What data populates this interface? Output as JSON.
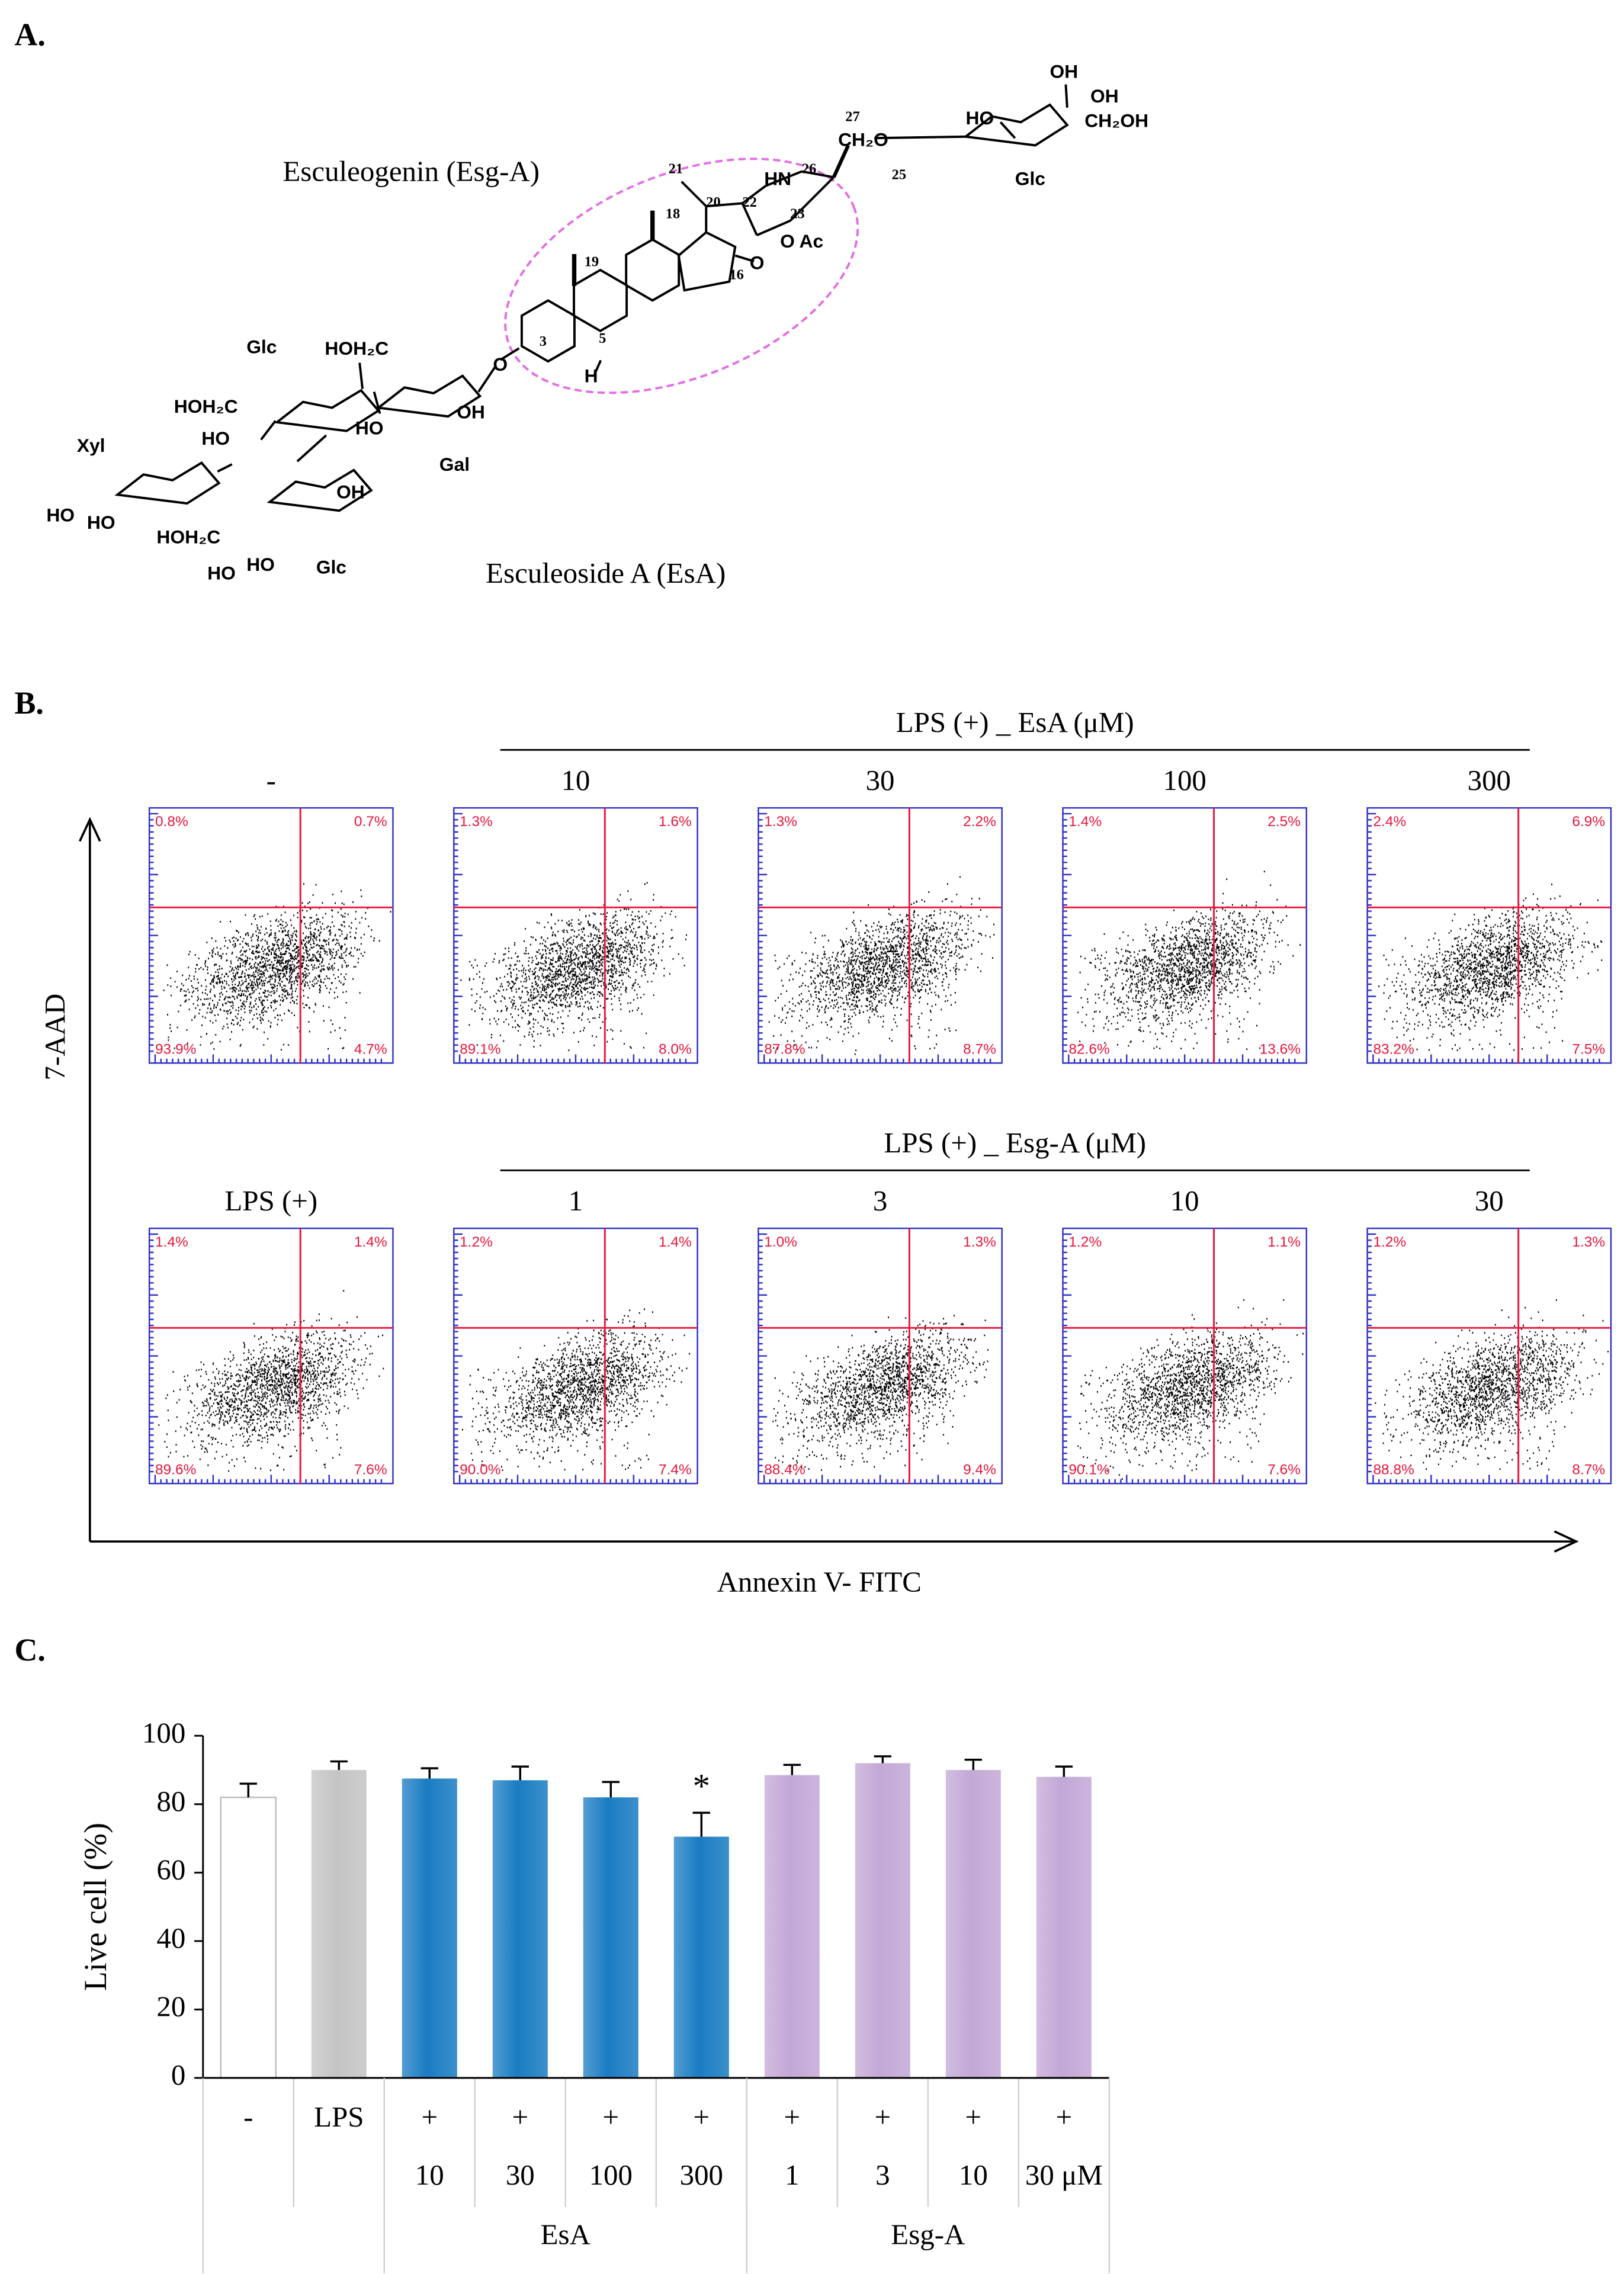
{
  "panel_a": {
    "label": "A.",
    "aglycone": "Esculeogenin (Esg-A)",
    "compound": "Esculeoside A (EsA)",
    "atoms": [
      "OH",
      "HO",
      "OH",
      "CH₂OH",
      "Glc",
      "CH₂O",
      "27",
      "25",
      "26",
      "HN",
      "21",
      "20",
      "22",
      "18",
      "23",
      "O Ac",
      "O",
      "16",
      "19",
      "3",
      "5",
      "H",
      "O",
      "HOH₂C",
      "Glc",
      "HOH₂C",
      "HO",
      "Xyl",
      "OH",
      "HO",
      "Gal",
      "OH",
      "HO",
      "HO",
      "HOH₂C",
      "HO",
      "HO",
      "Glc"
    ]
  },
  "panel_b": {
    "label": "B.",
    "y_axis": "7-AAD",
    "x_axis": "Annexin V- FITC",
    "rows": [
      {
        "header": "LPS (+) _ EsA (μM)",
        "plots": [
          {
            "label": "-",
            "quadrants": [
              "0.8%",
              "0.7%",
              "93.9%",
              "4.7%"
            ]
          },
          {
            "label": "10",
            "quadrants": [
              "1.3%",
              "1.6%",
              "89.1%",
              "8.0%"
            ]
          },
          {
            "label": "30",
            "quadrants": [
              "1.3%",
              "2.2%",
              "87.8%",
              "8.7%"
            ]
          },
          {
            "label": "100",
            "quadrants": [
              "1.4%",
              "2.5%",
              "82.6%",
              "13.6%"
            ]
          },
          {
            "label": "300",
            "quadrants": [
              "2.4%",
              "6.9%",
              "83.2%",
              "7.5%"
            ]
          }
        ]
      },
      {
        "header": "LPS (+) _ Esg-A (μM)",
        "plots": [
          {
            "label": "LPS (+)",
            "quadrants": [
              "1.4%",
              "1.4%",
              "89.6%",
              "7.6%"
            ]
          },
          {
            "label": "1",
            "quadrants": [
              "1.2%",
              "1.4%",
              "90.0%",
              "7.4%"
            ]
          },
          {
            "label": "3",
            "quadrants": [
              "1.0%",
              "1.3%",
              "88.4%",
              "9.4%"
            ]
          },
          {
            "label": "10",
            "quadrants": [
              "1.2%",
              "1.1%",
              "90.1%",
              "7.6%"
            ]
          },
          {
            "label": "30",
            "quadrants": [
              "1.2%",
              "1.3%",
              "88.8%",
              "8.7%"
            ]
          }
        ]
      }
    ]
  },
  "chart_data": {
    "type": "bar",
    "panel_label": "C.",
    "y_label": "Live cell (%)",
    "categories": [
      "-",
      "LPS",
      "+",
      "+",
      "+",
      "+",
      "+",
      "+",
      "+",
      "+"
    ],
    "doses": [
      null,
      null,
      "10",
      "30",
      "100",
      "300",
      "1",
      "3",
      "10",
      "30 μM"
    ],
    "groups": [
      null,
      null,
      "EsA",
      "EsA",
      "EsA",
      "EsA",
      "Esg-A",
      "Esg-A",
      "Esg-A",
      "Esg-A"
    ],
    "values": [
      82,
      90,
      87.5,
      87,
      82,
      70.5,
      88.5,
      92,
      90,
      88
    ],
    "errors": [
      4,
      2.5,
      3,
      4,
      4.5,
      7,
      3,
      2,
      3,
      3
    ],
    "colors": [
      "#ffffff",
      "#c4c4c4",
      "#1a7cc2",
      "#1a7cc2",
      "#1a7cc2",
      "#1a7cc2",
      "#c2a8d6",
      "#c2a8d6",
      "#c2a8d6",
      "#c2a8d6"
    ],
    "ylim": [
      0,
      100
    ],
    "yticks": [
      0,
      20,
      40,
      60,
      80,
      100
    ],
    "annotations": [
      {
        "text": "*",
        "index": 5
      }
    ]
  }
}
